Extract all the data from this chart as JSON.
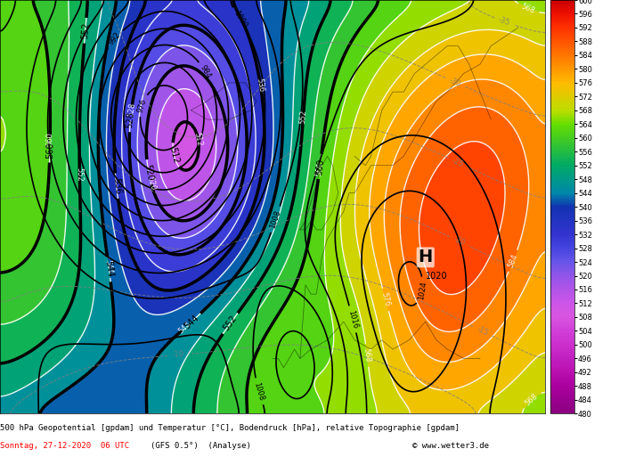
{
  "title_line1": "500 hPa Geopotential [gpdam] und Temperatur [°C], Bodendruck [hPa], relative Topographie [gpdam]",
  "title_line2_red": "Sonntag, 27-12-2020  06 UTC",
  "title_line2_black": "        (GFS 0.5°)  (Analyse)",
  "title_line2_right": "© www.wetter3.de",
  "colorbar_values": [
    480,
    484,
    488,
    492,
    496,
    500,
    504,
    508,
    512,
    516,
    520,
    524,
    528,
    532,
    536,
    540,
    544,
    548,
    552,
    556,
    560,
    564,
    568,
    572,
    576,
    580,
    584,
    588,
    592,
    596,
    600
  ],
  "colorbar_colors": [
    "#8B0080",
    "#9B0090",
    "#AB00A0",
    "#BB10B0",
    "#C020C0",
    "#CC30CC",
    "#D040D8",
    "#D855E0",
    "#CC55E8",
    "#B055E8",
    "#9055E8",
    "#6655E8",
    "#4444E0",
    "#3333D0",
    "#2233C0",
    "#1133B0",
    "#0088AA",
    "#009988",
    "#00AA66",
    "#22BB44",
    "#44CC22",
    "#66DD00",
    "#BBDD00",
    "#DDCC00",
    "#FFBB00",
    "#FF9900",
    "#FF7700",
    "#FF5500",
    "#FF3300",
    "#EE1100",
    "#CC0000"
  ],
  "map_xlim": [
    -60,
    40
  ],
  "map_ylim": [
    30,
    75
  ],
  "background_color": "#f0f0f0",
  "fig_width": 7.04,
  "fig_height": 5.13,
  "dpi": 100
}
